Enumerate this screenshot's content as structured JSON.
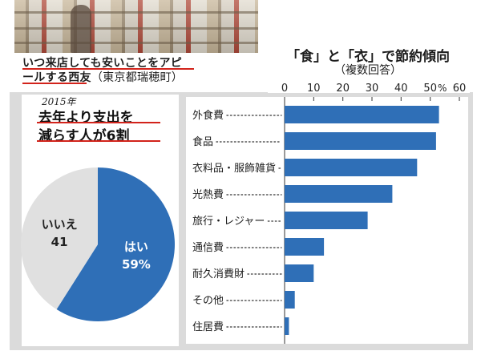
{
  "photo": {
    "caption_line1": "いつ来店しても安いことをアピ",
    "caption_line2_bold": "ールする西友",
    "caption_line2_location": "（東京都瑞穂町）"
  },
  "pie_panel": {
    "note": "2015年",
    "headline_line1": "去年より支出を",
    "headline_line2": "減らす人が6割"
  },
  "bar_panel": {
    "title": "「食」と「衣」で節約傾向",
    "subtitle": "（複数回答）"
  },
  "colors": {
    "accent_blue": "#2f6fb7",
    "pie_gray": "#e0e0e0",
    "underline_red": "#d2231b",
    "panel_gray": "#dbdbdb"
  },
  "chart_data": [
    {
      "type": "pie",
      "slices": [
        {
          "label": "はい",
          "value": 59,
          "value_label": "59%"
        },
        {
          "label": "いいえ",
          "value": 41,
          "value_label": "41"
        }
      ]
    },
    {
      "type": "bar",
      "orientation": "horizontal",
      "title": "「食」と「衣」で節約傾向",
      "subtitle": "（複数回答）",
      "unit": "%",
      "xlim": [
        0,
        60
      ],
      "ticks": [
        0,
        10,
        20,
        30,
        40,
        50,
        60
      ],
      "categories": [
        "外食費",
        "食品",
        "衣料品・服飾雑貨",
        "光熱費",
        "旅行・レジャー",
        "通信費",
        "耐久消費財",
        "その他",
        "住居費"
      ],
      "values": [
        53,
        52,
        45.5,
        37,
        28.5,
        13.5,
        10,
        3.5,
        1.5
      ],
      "grid": false,
      "legend": "none"
    }
  ]
}
